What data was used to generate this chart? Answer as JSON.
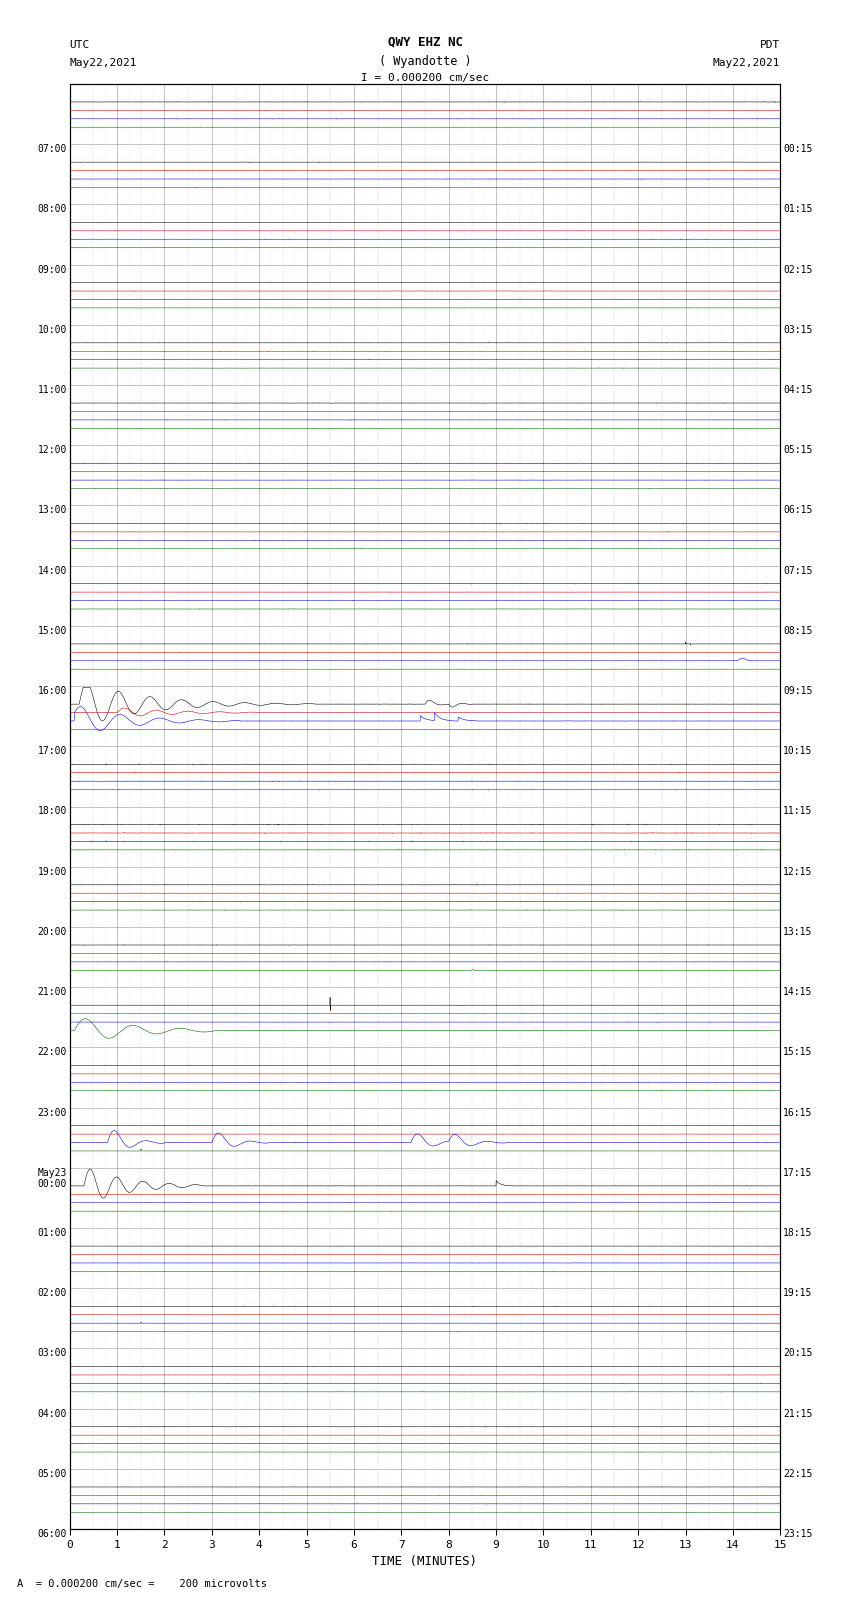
{
  "title_line1": "QWY EHZ NC",
  "title_line2": "( Wyandotte )",
  "scale_label": "I = 0.000200 cm/sec",
  "left_label_line1": "UTC",
  "left_label_line2": "May22,2021",
  "right_label_line1": "PDT",
  "right_label_line2": "May22,2021",
  "bottom_label": "TIME (MINUTES)",
  "footnote": "A  = 0.000200 cm/sec =    200 microvolts",
  "x_min": 0,
  "x_max": 15,
  "x_ticks": [
    0,
    1,
    2,
    3,
    4,
    5,
    6,
    7,
    8,
    9,
    10,
    11,
    12,
    13,
    14,
    15
  ],
  "num_rows": 24,
  "utc_labels": [
    "07:00",
    "08:00",
    "09:00",
    "10:00",
    "11:00",
    "12:00",
    "13:00",
    "14:00",
    "15:00",
    "16:00",
    "17:00",
    "18:00",
    "19:00",
    "20:00",
    "21:00",
    "22:00",
    "23:00",
    "May23\n00:00",
    "01:00",
    "02:00",
    "03:00",
    "04:00",
    "05:00",
    "06:00"
  ],
  "pdt_labels": [
    "00:15",
    "01:15",
    "02:15",
    "03:15",
    "04:15",
    "05:15",
    "06:15",
    "07:15",
    "08:15",
    "09:15",
    "10:15",
    "11:15",
    "12:15",
    "13:15",
    "14:15",
    "15:15",
    "16:15",
    "17:15",
    "18:15",
    "19:15",
    "20:15",
    "21:15",
    "22:15",
    "23:15"
  ],
  "background_color": "#ffffff",
  "trace_color_black": "#000000",
  "trace_color_red": "#cc0000",
  "trace_color_blue": "#0000cc",
  "trace_color_green": "#006600",
  "grid_color": "#aaaaaa",
  "grid_minor_color": "#dddddd"
}
